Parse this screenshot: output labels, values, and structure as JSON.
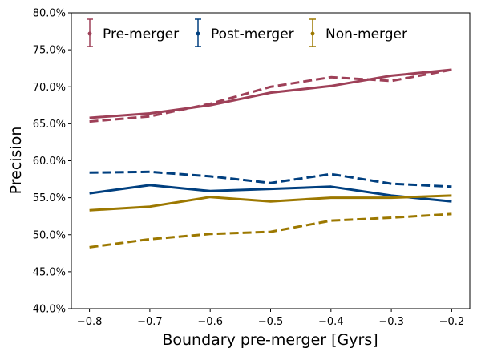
{
  "chart_data": {
    "type": "line",
    "title": "",
    "xlabel": "Boundary pre-merger [Gyrs]",
    "ylabel": "Precision",
    "xlim": [
      -0.83,
      -0.17
    ],
    "ylim": [
      40,
      80
    ],
    "xticks": [
      -0.8,
      -0.7,
      -0.6,
      -0.5,
      -0.4,
      -0.3,
      -0.2
    ],
    "xtick_labels": [
      "−0.8",
      "−0.7",
      "−0.6",
      "−0.5",
      "−0.4",
      "−0.3",
      "−0.2"
    ],
    "yticks": [
      40,
      45,
      50,
      55,
      60,
      65,
      70,
      75,
      80
    ],
    "ytick_labels": [
      "40.0%",
      "45.0%",
      "50.0%",
      "55.0%",
      "60.0%",
      "65.0%",
      "70.0%",
      "75.0%",
      "80.0%"
    ],
    "grid": false,
    "legend_placement": "top",
    "x": [
      -0.8,
      -0.7,
      -0.6,
      -0.5,
      -0.4,
      -0.3,
      -0.2
    ],
    "series": [
      {
        "name": "Pre-merger",
        "color": "#9e4058",
        "style": "solid",
        "values": [
          65.8,
          66.4,
          67.5,
          69.2,
          70.1,
          71.5,
          72.3
        ]
      },
      {
        "name": "",
        "color": "#9e4058",
        "style": "dashed",
        "values": [
          65.3,
          66.0,
          67.7,
          70.0,
          71.3,
          70.8,
          72.3
        ]
      },
      {
        "name": "Post-merger",
        "color": "#003f7f",
        "style": "solid",
        "values": [
          55.6,
          56.7,
          55.9,
          56.2,
          56.5,
          55.3,
          54.5
        ]
      },
      {
        "name": "",
        "color": "#003f7f",
        "style": "dashed",
        "values": [
          58.4,
          58.5,
          57.9,
          57.0,
          58.2,
          56.9,
          56.5
        ]
      },
      {
        "name": "Non-merger",
        "color": "#9c7800",
        "style": "solid",
        "values": [
          53.3,
          53.8,
          55.1,
          54.5,
          55.0,
          55.0,
          55.3
        ]
      },
      {
        "name": "",
        "color": "#9c7800",
        "style": "dashed",
        "values": [
          48.3,
          49.4,
          50.1,
          50.4,
          51.9,
          52.3,
          52.8
        ]
      }
    ],
    "legend": [
      {
        "label": "Pre-merger",
        "color": "#9e4058"
      },
      {
        "label": "Post-merger",
        "color": "#003f7f"
      },
      {
        "label": "Non-merger",
        "color": "#9c7800"
      }
    ]
  }
}
